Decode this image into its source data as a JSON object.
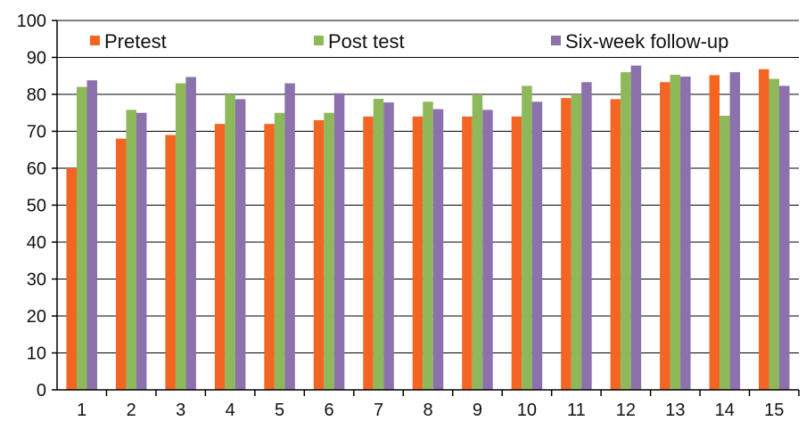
{
  "chart_data": {
    "type": "bar",
    "categories": [
      "1",
      "2",
      "3",
      "4",
      "5",
      "6",
      "7",
      "8",
      "9",
      "10",
      "11",
      "12",
      "13",
      "14",
      "15"
    ],
    "series": [
      {
        "name": "Pretest",
        "color": "#F26522",
        "values": [
          60,
          68,
          69,
          72,
          72,
          73,
          74,
          74,
          74,
          74,
          79,
          78.7,
          83.3,
          85.2,
          86.8
        ]
      },
      {
        "name": "Post test",
        "color": "#8DB95A",
        "values": [
          82,
          75.8,
          83,
          80,
          75,
          75,
          78.8,
          78,
          80,
          82.3,
          80,
          86,
          85.3,
          74.2,
          84.2
        ]
      },
      {
        "name": "Six-week follow-up",
        "color": "#8C71AC",
        "values": [
          83.8,
          75,
          84.7,
          78.7,
          83,
          80.3,
          77.8,
          76,
          75.8,
          78,
          83.3,
          87.8,
          84.8,
          86,
          82.3
        ]
      }
    ],
    "yticks": [
      "0",
      "10",
      "20",
      "30",
      "40",
      "50",
      "60",
      "70",
      "80",
      "90",
      "100"
    ],
    "ylim": [
      0,
      100
    ],
    "grid": true,
    "legend_position": "top"
  }
}
